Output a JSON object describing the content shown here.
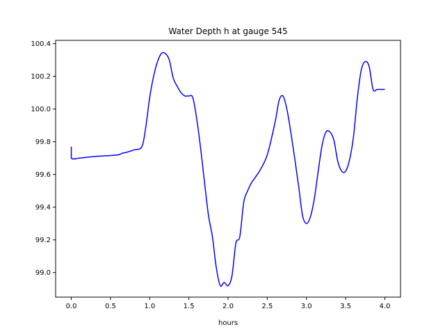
{
  "chart_data": {
    "type": "line",
    "title": "Water Depth h at gauge 545",
    "xlabel": "hours",
    "ylabel": "",
    "xlim": [
      -0.2,
      4.2
    ],
    "ylim": [
      98.85,
      100.42
    ],
    "xticks": [
      0.0,
      0.5,
      1.0,
      1.5,
      2.0,
      2.5,
      3.0,
      3.5,
      4.0
    ],
    "xtick_labels": [
      "0.0",
      "0.5",
      "1.0",
      "1.5",
      "2.0",
      "2.5",
      "3.0",
      "3.5",
      "4.0"
    ],
    "yticks": [
      99.0,
      99.2,
      99.4,
      99.6,
      99.8,
      100.0,
      100.2,
      100.4
    ],
    "ytick_labels": [
      "99.0",
      "99.2",
      "99.4",
      "99.6",
      "99.8",
      "100.0",
      "100.2",
      "100.4"
    ],
    "grid": false,
    "series": [
      {
        "color": "#0000ff",
        "x": [
          0.0,
          0.0,
          0.1,
          0.2,
          0.3,
          0.4,
          0.5,
          0.6,
          0.65,
          0.7,
          0.8,
          0.9,
          0.95,
          1.0,
          1.05,
          1.1,
          1.15,
          1.2,
          1.25,
          1.3,
          1.35,
          1.4,
          1.45,
          1.5,
          1.55,
          1.6,
          1.65,
          1.7,
          1.75,
          1.8,
          1.85,
          1.9,
          1.95,
          2.0,
          2.05,
          2.1,
          2.15,
          2.2,
          2.25,
          2.3,
          2.4,
          2.5,
          2.6,
          2.65,
          2.7,
          2.75,
          2.8,
          2.85,
          2.9,
          2.95,
          3.0,
          3.05,
          3.1,
          3.15,
          3.2,
          3.25,
          3.3,
          3.35,
          3.4,
          3.45,
          3.5,
          3.55,
          3.6,
          3.65,
          3.7,
          3.75,
          3.8,
          3.85,
          3.9,
          3.95,
          4.0
        ],
        "y": [
          99.77,
          99.7,
          99.7,
          99.705,
          99.71,
          99.713,
          99.716,
          99.72,
          99.73,
          99.735,
          99.75,
          99.77,
          99.89,
          100.07,
          100.2,
          100.29,
          100.34,
          100.34,
          100.3,
          100.19,
          100.14,
          100.1,
          100.08,
          100.08,
          100.07,
          99.94,
          99.76,
          99.55,
          99.35,
          99.22,
          99.03,
          98.92,
          98.94,
          98.92,
          98.98,
          99.18,
          99.22,
          99.43,
          99.5,
          99.55,
          99.62,
          99.72,
          99.92,
          100.05,
          100.08,
          100.0,
          99.86,
          99.7,
          99.53,
          99.35,
          99.3,
          99.34,
          99.45,
          99.62,
          99.78,
          99.86,
          99.86,
          99.81,
          99.68,
          99.62,
          99.62,
          99.69,
          99.83,
          100.07,
          100.24,
          100.29,
          100.26,
          100.12,
          100.12,
          100.12,
          100.12
        ]
      }
    ]
  }
}
